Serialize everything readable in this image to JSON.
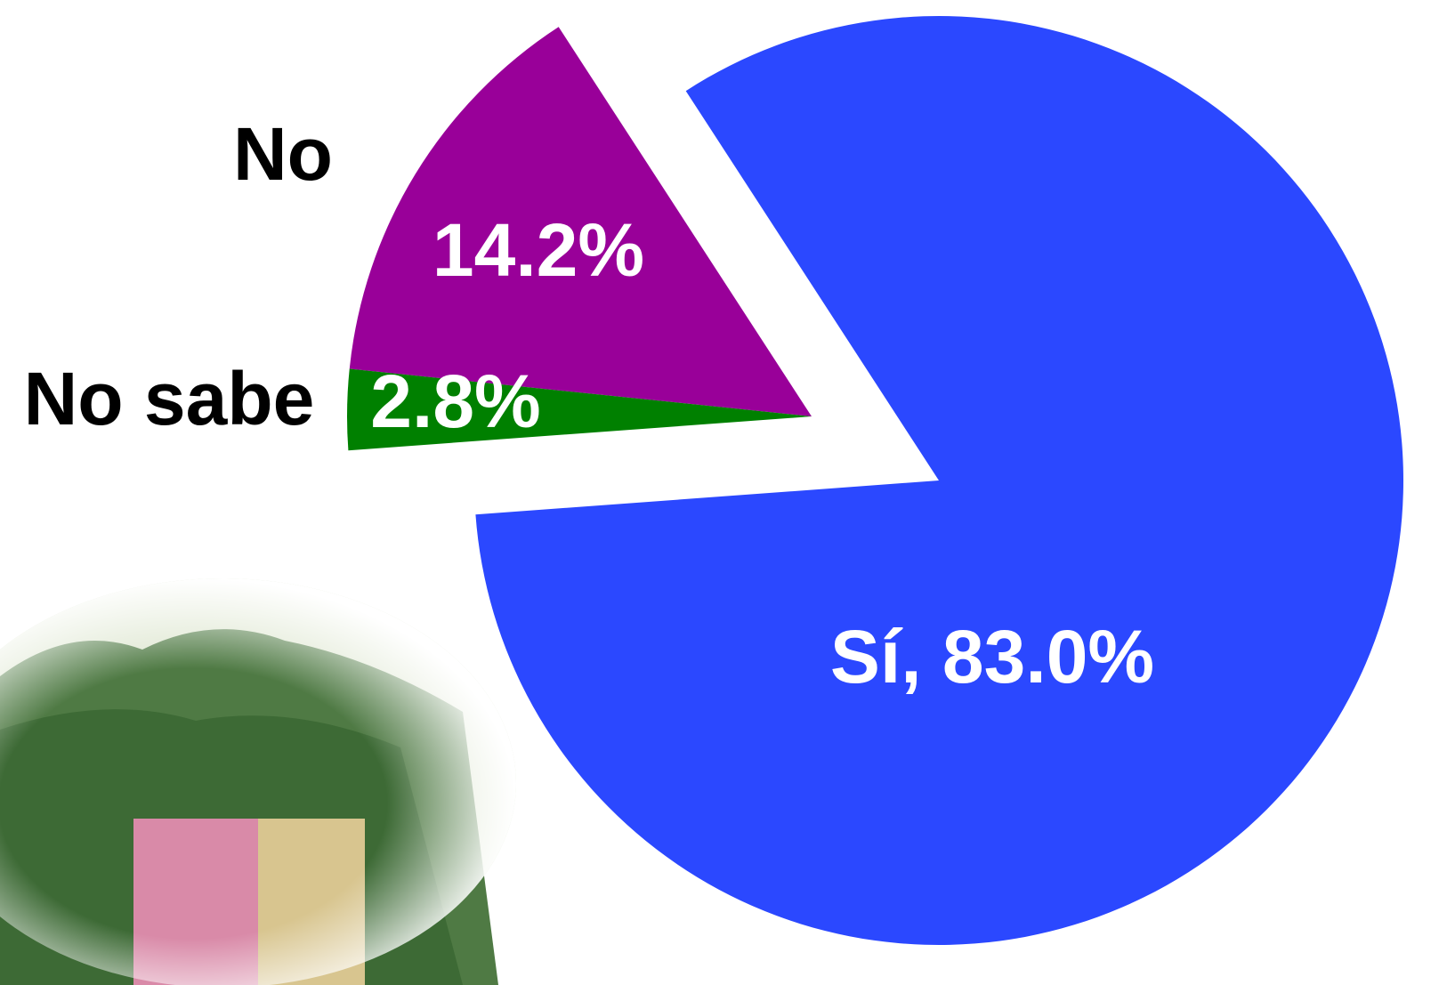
{
  "chart_data": {
    "type": "pie",
    "categories": [
      "Sí",
      "No",
      "No sabe"
    ],
    "values": [
      83.0,
      14.2,
      2.8
    ],
    "value_labels": [
      ", 83.0%",
      "14.2%",
      "2.8%"
    ],
    "colors": [
      "#2b48ff",
      "#990099",
      "#008000"
    ]
  }
}
